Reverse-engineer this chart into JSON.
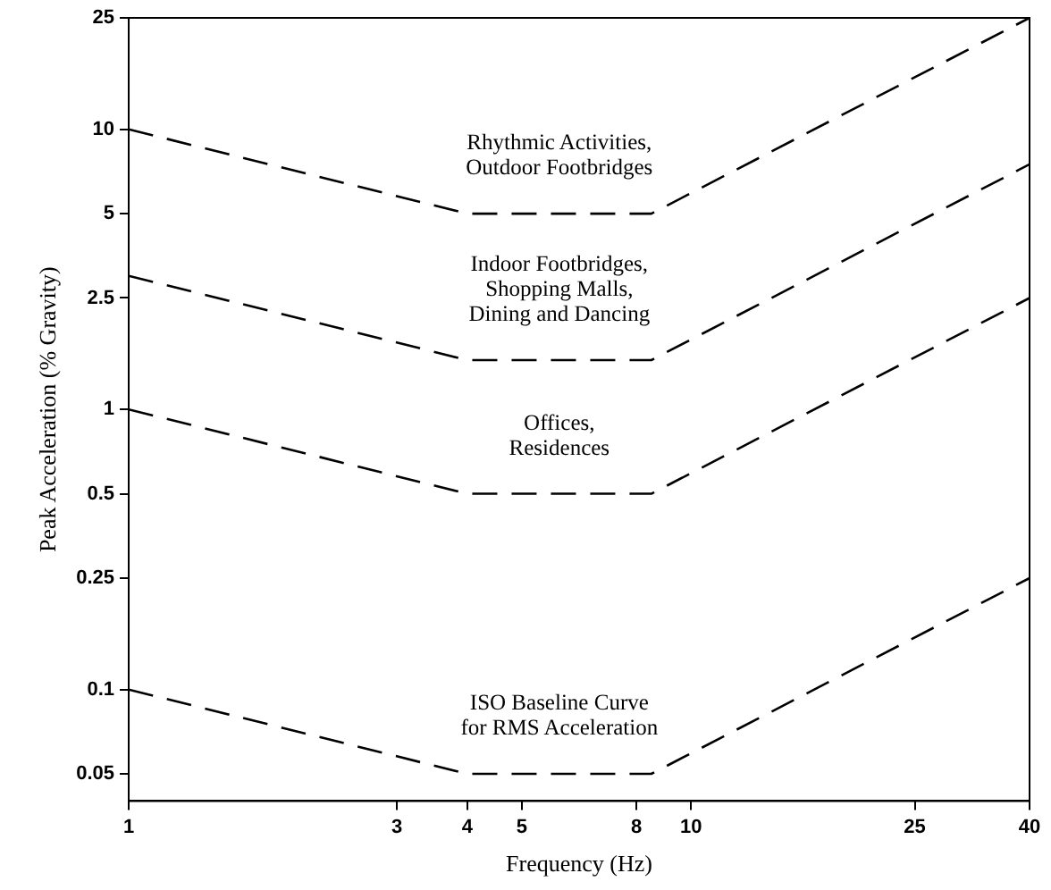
{
  "chart_data": {
    "type": "line",
    "xlabel": "Frequency (Hz)",
    "ylabel": "Peak Acceleration (% Gravity)",
    "log": "xy",
    "grid": false,
    "legend": false,
    "marker": "none",
    "line_style": "dashed",
    "xlim": [
      1,
      40
    ],
    "xticks": [
      1,
      3,
      4,
      5,
      8,
      10,
      25,
      40
    ],
    "ylim": [
      0.04,
      25
    ],
    "yticks": [
      0.05,
      0.1,
      0.25,
      0.5,
      1,
      2.5,
      5,
      10,
      25
    ],
    "series": [
      {
        "color": "#000000",
        "x": [
          1,
          4,
          8.5,
          40
        ],
        "values": [
          10,
          5,
          5,
          25
        ]
      },
      {
        "color": "#000000",
        "x": [
          1,
          4,
          8.5,
          40
        ],
        "values": [
          3,
          1.5,
          1.5,
          7.5
        ]
      },
      {
        "color": "#000000",
        "x": [
          1,
          4,
          8.5,
          40
        ],
        "values": [
          1,
          0.5,
          0.5,
          2.5
        ]
      },
      {
        "color": "#000000",
        "x": [
          1,
          4,
          8.5,
          40
        ],
        "values": [
          0.1,
          0.05,
          0.05,
          0.25
        ]
      }
    ],
    "annotations": [
      "Rhythmic Activities,\nOutdoor Footbridges",
      "Indoor Footbridges,\nShopping Malls,\nDining and Dancing",
      "Offices,\nResidences",
      "ISO Baseline Curve\nfor RMS Acceleration"
    ]
  }
}
